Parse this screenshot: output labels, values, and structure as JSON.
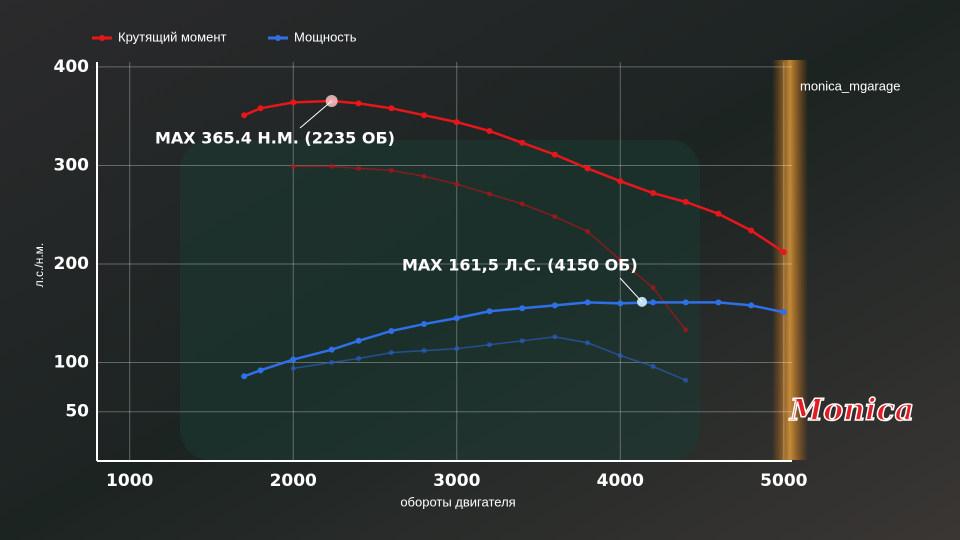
{
  "chart_data": {
    "type": "line",
    "legend": [
      "Крутящий момент",
      "Мощность"
    ],
    "xlabel": "обороты двигателя",
    "ylabel": "л.с./н.м.",
    "watermark": "monica_mgarage",
    "logo": "Monica",
    "annotations": [
      "MAX 365.4 Н.М. (2235 ОБ)",
      "MAX 161,5 Л.С. (4150 ОБ)"
    ],
    "x": [
      1700,
      1800,
      2000,
      2235,
      2400,
      2600,
      2800,
      3000,
      3200,
      3400,
      3600,
      3800,
      4000,
      4200,
      4400,
      4600,
      4800,
      5000
    ],
    "series": [
      {
        "name": "Крутящий момент",
        "color": "#e8161b",
        "values": [
          351,
          358,
          364,
          365.4,
          363,
          358,
          351,
          344,
          335,
          323,
          311,
          297,
          284,
          272,
          263,
          251,
          234,
          212
        ]
      },
      {
        "name": "Мощность",
        "color": "#2f6fe8",
        "values": [
          86,
          92,
          103,
          113,
          122,
          132,
          139,
          145,
          152,
          155,
          158,
          161,
          160,
          161,
          161,
          161,
          158,
          151
        ]
      }
    ],
    "faded_series": [
      {
        "color": "#b01418",
        "values": [
          null,
          null,
          299,
          299,
          297,
          295,
          289,
          281,
          271,
          261,
          248,
          233,
          204,
          176,
          133,
          null,
          null,
          null
        ]
      },
      {
        "color": "#2a5cc0",
        "values": [
          null,
          null,
          94,
          100,
          104,
          110,
          112,
          114,
          118,
          122,
          126,
          120,
          107,
          96,
          82,
          null,
          null,
          null
        ]
      }
    ],
    "xlim": [
      800,
      5050
    ],
    "ylim": [
      0,
      405
    ],
    "xticks": [
      1000,
      2000,
      3000,
      4000,
      5000
    ],
    "yticks": [
      50,
      100,
      200,
      300,
      400
    ],
    "grid": true
  }
}
